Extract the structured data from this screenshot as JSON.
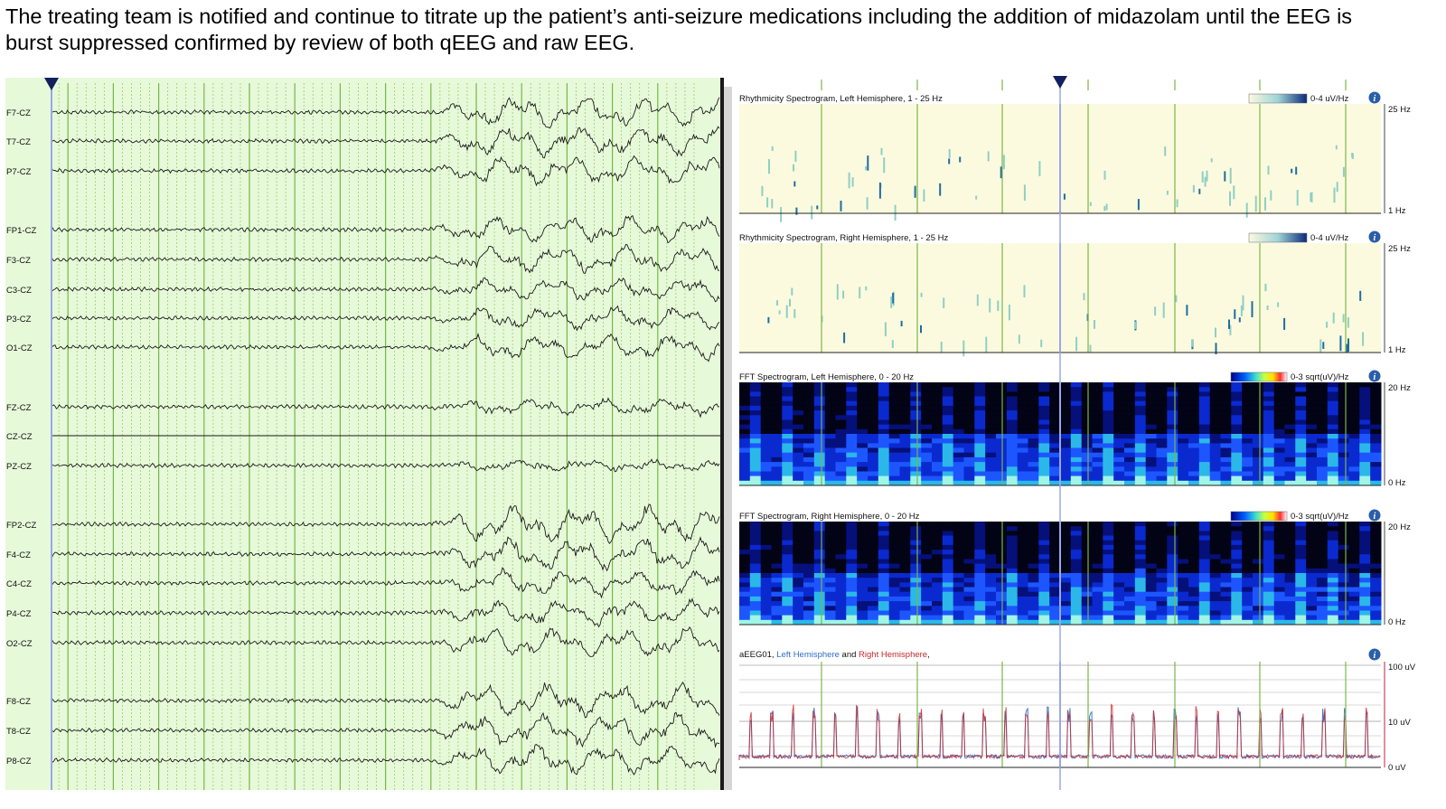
{
  "caption": {
    "line1": "The treating team is notified and continue to titrate up the patient’s anti-seizure medications including the addition of midazolam until the EEG is",
    "line2": "burst suppressed confirmed by review of both qEEG and raw EEG."
  },
  "eeg": {
    "channels": [
      {
        "label": "F7-CZ",
        "amp": 1.0
      },
      {
        "label": "T7-CZ",
        "amp": 1.0
      },
      {
        "label": "P7-CZ",
        "amp": 0.95
      },
      {
        "label": "FP1-CZ",
        "amp": 0.9
      },
      {
        "label": "F3-CZ",
        "amp": 0.9
      },
      {
        "label": "C3-CZ",
        "amp": 0.7
      },
      {
        "label": "P3-CZ",
        "amp": 0.75
      },
      {
        "label": "O1-CZ",
        "amp": 0.85
      },
      {
        "label": "FZ-CZ",
        "amp": 0.5
      },
      {
        "label": "CZ-CZ",
        "amp": 0
      },
      {
        "label": "PZ-CZ",
        "amp": 0.35
      },
      {
        "label": "FP2-CZ",
        "amp": 1.2
      },
      {
        "label": "F4-CZ",
        "amp": 1.1
      },
      {
        "label": "C4-CZ",
        "amp": 0.85
      },
      {
        "label": "P4-CZ",
        "amp": 0.85
      },
      {
        "label": "O2-CZ",
        "amp": 1.0
      },
      {
        "label": "F8-CZ",
        "amp": 1.1
      },
      {
        "label": "T8-CZ",
        "amp": 1.1
      },
      {
        "label": "P8-CZ",
        "amp": 1.0
      }
    ],
    "colors": {
      "background": "#e6f9d9",
      "trace": "#1a1a1a",
      "grid_major": "#7ab648",
      "grid_minor": "#9dcc6f",
      "cursor": "#9aa7e8",
      "marker": "#12205e"
    }
  },
  "trends": {
    "panels": [
      {
        "type": "rhythmicity",
        "title": "Rhythmicity Spectrogram, Left Hemisphere, 1 - 25 Hz",
        "scale": "0-4 uV/Hz",
        "ticks": [
          "25 Hz",
          "1 Hz"
        ]
      },
      {
        "type": "rhythmicity",
        "title": "Rhythmicity Spectrogram, Right Hemisphere, 1 - 25 Hz",
        "scale": "0-4 uV/Hz",
        "ticks": [
          "25 Hz",
          "1 Hz"
        ]
      },
      {
        "type": "fft",
        "title": "FFT Spectrogram, Left Hemisphere, 0 - 20 Hz",
        "scale": "0-3 sqrt(uV)/Hz",
        "ticks": [
          "20 Hz",
          "0 Hz"
        ]
      },
      {
        "type": "fft",
        "title": "FFT Spectrogram, Right Hemisphere, 0 - 20 Hz",
        "scale": "0-3 sqrt(uV)/Hz",
        "ticks": [
          "20 Hz",
          "0 Hz"
        ]
      },
      {
        "type": "aeeg",
        "title": "aEEG01, ",
        "title_left": "Left Hemisphere",
        "title_and": " and ",
        "title_right": "Right Hemisphere",
        "title_end": ",",
        "ticks": [
          "100 uV",
          "10 uV",
          "0 uV"
        ]
      }
    ],
    "info_icon": "i",
    "colors": {
      "left": "#2f6fc4",
      "right": "#c4282d",
      "rhythm_bg": "#fbfadf",
      "fft_bg": "#030316",
      "cursor": "#9aa7e8",
      "marker": "#12205e",
      "axis": "#c0203a"
    }
  }
}
